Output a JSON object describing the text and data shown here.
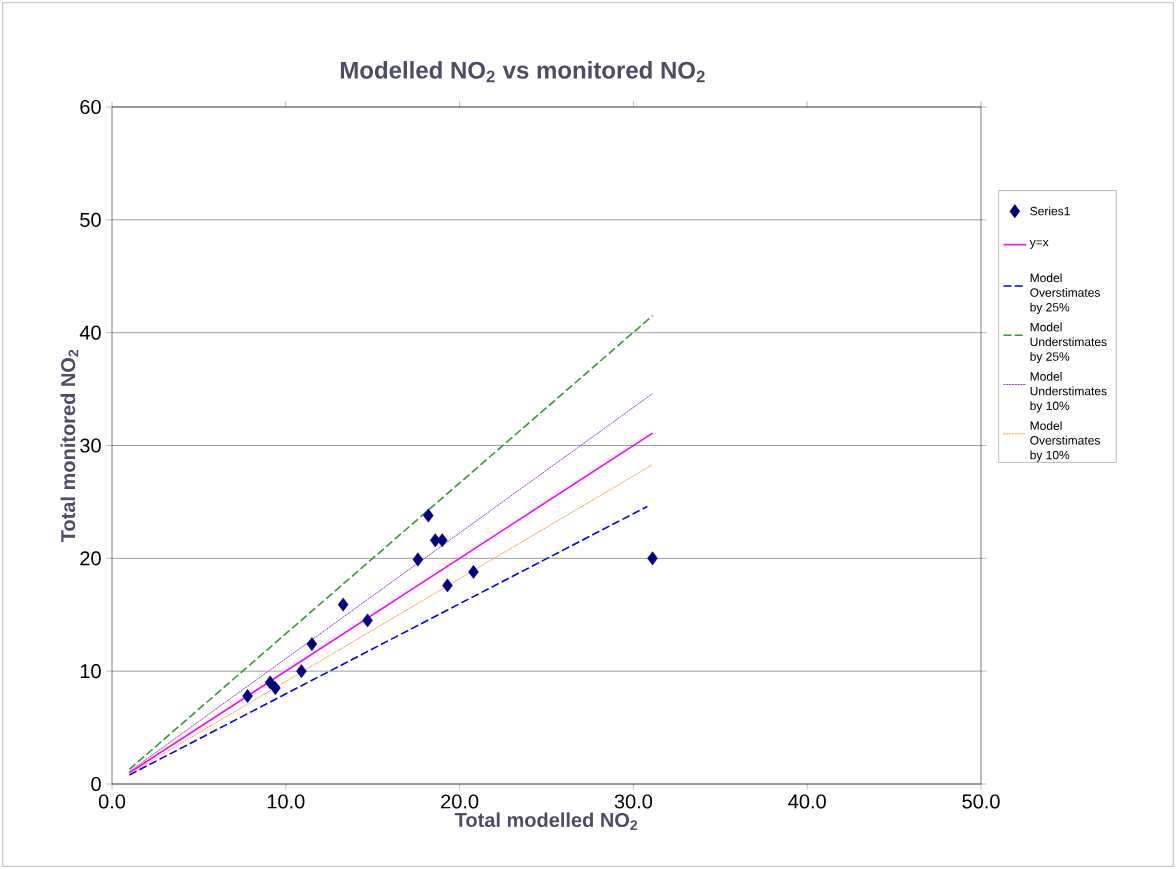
{
  "chart_data": {
    "type": "scatter",
    "title": "Modelled NO$_{2}$ vs monitored NO$_{2}$",
    "xlabel": "Total modelled NO$_{2}$",
    "ylabel": "Total monitored NO$_{2}$",
    "xlim": [
      0,
      50
    ],
    "ylim": [
      0,
      60
    ],
    "xticks": [
      {
        "value": 0,
        "label": "0.0"
      },
      {
        "value": 10,
        "label": "10.0"
      },
      {
        "value": 20,
        "label": "20.0"
      },
      {
        "value": 30,
        "label": "30.0"
      },
      {
        "value": 40,
        "label": "40.0"
      },
      {
        "value": 50,
        "label": "50.0"
      }
    ],
    "yticks": [
      0,
      10,
      20,
      30,
      40,
      50,
      60
    ],
    "grid": "y",
    "legend": "right",
    "series": [
      {
        "name": "Series1",
        "type": "scatter",
        "marker": "diamond",
        "color": "#000080",
        "x": [
          7.8,
          9.1,
          9.4,
          10.9,
          11.5,
          13.3,
          14.7,
          17.6,
          18.2,
          18.6,
          19.0,
          19.3,
          20.8,
          31.1
        ],
        "values": [
          7.8,
          9.0,
          8.5,
          10.0,
          12.4,
          15.9,
          14.5,
          19.9,
          23.8,
          21.6,
          21.6,
          17.6,
          18.8,
          20.0
        ]
      },
      {
        "name": "y=x",
        "type": "line",
        "line_style": "solid",
        "color": "#ff00ff",
        "x": [
          1,
          31.1
        ],
        "values": [
          1,
          31.1
        ]
      },
      {
        "name": "Model Overstimates by 25%",
        "type": "line",
        "line_style": "dashed",
        "color": "#0000ff",
        "x": [
          1,
          30.8
        ],
        "values": [
          0.8,
          24.6
        ]
      },
      {
        "name": "Model Understimates by 25%",
        "type": "line",
        "line_style": "dashed",
        "color": "#339933",
        "x": [
          1,
          31.1
        ],
        "values": [
          1.3,
          41.5
        ]
      },
      {
        "name": "Model Understimates by 10%",
        "type": "line",
        "line_style": "dotted",
        "color": "#9933cc",
        "x": [
          1,
          31.1
        ],
        "values": [
          1.1,
          34.6
        ]
      },
      {
        "name": "Model Overstimates by 10%",
        "type": "line",
        "line_style": "dotted",
        "color": "#ff9933",
        "x": [
          1,
          31.1
        ],
        "values": [
          0.9,
          28.3
        ]
      }
    ]
  }
}
